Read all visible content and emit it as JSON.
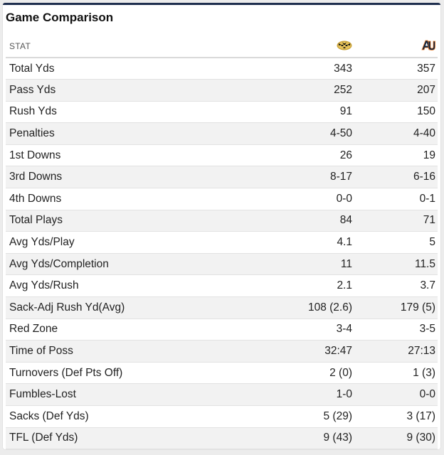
{
  "title": "Game Comparison",
  "header": {
    "stat_label": "STAT",
    "team1_icon": "mizzou-tiger-logo-icon",
    "team2_icon": "auburn-au-logo-icon"
  },
  "colors": {
    "accent_bar": "#1f2f4f",
    "team1_gold": "#c9a23a",
    "team2_navy": "#0c2340",
    "team2_orange": "#e87722"
  },
  "rows": [
    {
      "stat": "Total Yds",
      "team1": "343",
      "team2": "357"
    },
    {
      "stat": "Pass Yds",
      "team1": "252",
      "team2": "207"
    },
    {
      "stat": "Rush Yds",
      "team1": "91",
      "team2": "150"
    },
    {
      "stat": "Penalties",
      "team1": "4-50",
      "team2": "4-40"
    },
    {
      "stat": "1st Downs",
      "team1": "26",
      "team2": "19"
    },
    {
      "stat": "3rd Downs",
      "team1": "8-17",
      "team2": "6-16"
    },
    {
      "stat": "4th Downs",
      "team1": "0-0",
      "team2": "0-1"
    },
    {
      "stat": "Total Plays",
      "team1": "84",
      "team2": "71"
    },
    {
      "stat": "Avg Yds/Play",
      "team1": "4.1",
      "team2": "5"
    },
    {
      "stat": "Avg Yds/Completion",
      "team1": "11",
      "team2": "11.5"
    },
    {
      "stat": "Avg Yds/Rush",
      "team1": "2.1",
      "team2": "3.7"
    },
    {
      "stat": "Sack-Adj Rush Yd(Avg)",
      "team1": "108 (2.6)",
      "team2": "179 (5)"
    },
    {
      "stat": "Red Zone",
      "team1": "3-4",
      "team2": "3-5"
    },
    {
      "stat": "Time of Poss",
      "team1": "32:47",
      "team2": "27:13"
    },
    {
      "stat": "Turnovers (Def Pts Off)",
      "team1": "2 (0)",
      "team2": "1 (3)"
    },
    {
      "stat": "Fumbles-Lost",
      "team1": "1-0",
      "team2": "0-0"
    },
    {
      "stat": "Sacks (Def Yds)",
      "team1": "5 (29)",
      "team2": "3 (17)"
    },
    {
      "stat": "TFL (Def Yds)",
      "team1": "9 (43)",
      "team2": "9 (30)"
    }
  ]
}
